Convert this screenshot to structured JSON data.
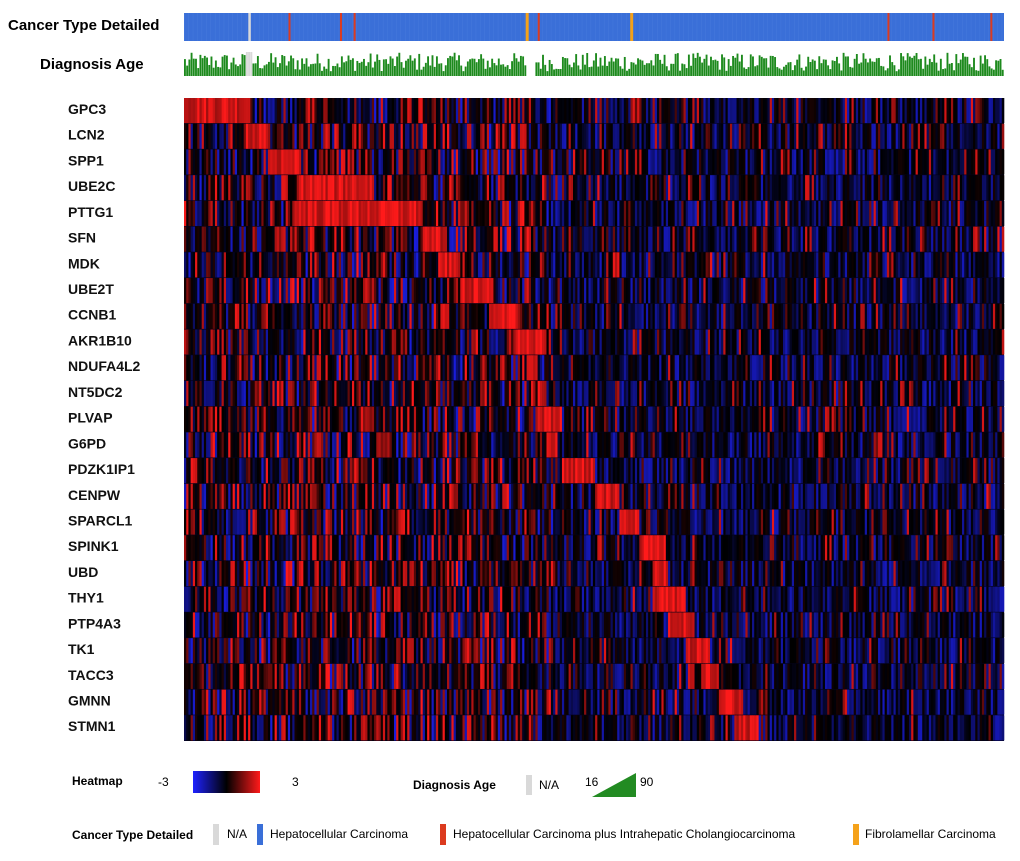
{
  "chart_data": {
    "type": "heatmap",
    "row_labels": [
      "GPC3",
      "LCN2",
      "SPP1",
      "UBE2C",
      "PTTG1",
      "SFN",
      "MDK",
      "UBE2T",
      "CCNB1",
      "AKR1B10",
      "NDUFA4L2",
      "NT5DC2",
      "PLVAP",
      "G6PD",
      "PDZK1IP1",
      "CENPW",
      "SPARCL1",
      "SPINK1",
      "UBD",
      "THY1",
      "PTP4A3",
      "TK1",
      "TACC3",
      "GMNN",
      "STMN1"
    ],
    "n_samples": 371,
    "color_range": [
      -3,
      3
    ],
    "colors": {
      "low": "#1e22ff",
      "mid": "#000000",
      "high": "#ff1a1a"
    },
    "row_high_blocks": [
      [
        0.0,
        0.08
      ],
      [
        0.075,
        0.105
      ],
      [
        0.105,
        0.14
      ],
      [
        0.135,
        0.23
      ],
      [
        0.135,
        0.29
      ],
      [
        0.29,
        0.32
      ],
      [
        0.31,
        0.335
      ],
      [
        0.335,
        0.375
      ],
      [
        0.37,
        0.405
      ],
      [
        0.4,
        0.44
      ],
      [
        0.42,
        0.43
      ],
      [
        0.43,
        0.44
      ],
      [
        0.43,
        0.46
      ],
      [
        0.44,
        0.455
      ],
      [
        0.46,
        0.5
      ],
      [
        0.5,
        0.53
      ],
      [
        0.53,
        0.555
      ],
      [
        0.555,
        0.585
      ],
      [
        0.57,
        0.59
      ],
      [
        0.57,
        0.61
      ],
      [
        0.59,
        0.62
      ],
      [
        0.61,
        0.64
      ],
      [
        0.63,
        0.65
      ],
      [
        0.65,
        0.68
      ],
      [
        0.67,
        0.7
      ]
    ],
    "tracks": {
      "cancer_type": {
        "label": "Cancer Type Detailed",
        "special": [
          {
            "index": 80,
            "category": "na"
          },
          {
            "index": 130,
            "category": "hcc_icc"
          },
          {
            "index": 194,
            "category": "hcc_icc"
          },
          {
            "index": 211,
            "category": "hcc_icc"
          },
          {
            "index": 425,
            "category": "fibro"
          },
          {
            "index": 440,
            "category": "hcc_icc"
          },
          {
            "index": 555,
            "category": "fibro"
          },
          {
            "index": 875,
            "category": "hcc_icc"
          },
          {
            "index": 931,
            "category": "hcc_icc"
          },
          {
            "index": 1003,
            "category": "hcc_icc"
          }
        ]
      },
      "diagnosis_age": {
        "label": "Diagnosis Age",
        "range": [
          16,
          90
        ]
      }
    },
    "legend": {
      "heatmap": {
        "title": "Heatmap",
        "min_label": "-3",
        "max_label": "3"
      },
      "diagnosis_age": {
        "title": "Diagnosis Age",
        "na_label": "N/A",
        "min_label": "16",
        "max_label": "90"
      },
      "cancer_type": {
        "title": "Cancer Type Detailed",
        "items": [
          {
            "key": "na",
            "label": "N/A",
            "color": "#d9d9d9"
          },
          {
            "key": "hcc",
            "label": "Hepatocellular Carcinoma",
            "color": "#3a6fd8"
          },
          {
            "key": "hcc_icc",
            "label": "Hepatocellular Carcinoma plus Intrahepatic Cholangiocarcinoma",
            "color": "#dc3b1f"
          },
          {
            "key": "fibro",
            "label": "Fibrolamellar Carcinoma",
            "color": "#f5a21a"
          }
        ]
      }
    }
  }
}
